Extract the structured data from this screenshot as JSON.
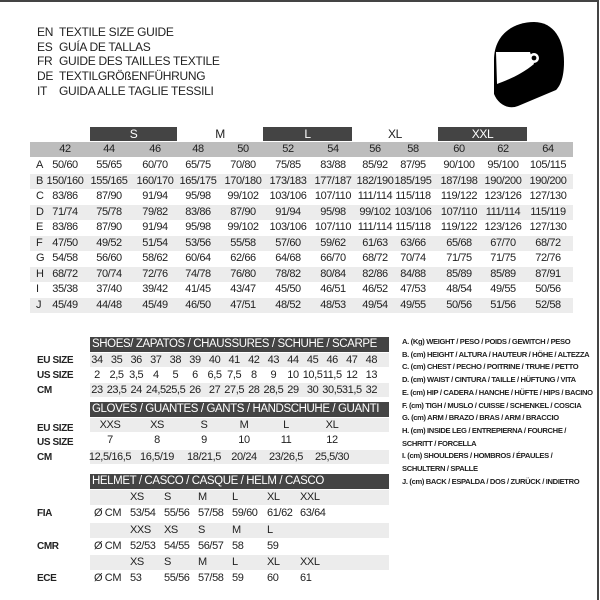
{
  "titles": [
    {
      "lang": "EN",
      "text": "TEXTILE SIZE GUIDE"
    },
    {
      "lang": "ES",
      "text": "GUÍA DE TALLAS"
    },
    {
      "lang": "FR",
      "text": "GUIDE DES TAILLES TEXTILE"
    },
    {
      "lang": "DE",
      "text": "TEXTILGRÖßENFÜHRUNG"
    },
    {
      "lang": "IT",
      "text": "GUIDA ALLE TAGLIE TESSILI"
    }
  ],
  "helmet_icon": "helmet-icon",
  "textile": {
    "size_groups": [
      "S",
      "M",
      "L",
      "XL",
      "XXL"
    ],
    "sizes": [
      "42",
      "44",
      "46",
      "48",
      "50",
      "52",
      "54",
      "56",
      "58",
      "60",
      "62",
      "64"
    ],
    "rows": [
      {
        "key": "A",
        "values": [
          "50/60",
          "55/65",
          "60/70",
          "65/75",
          "70/80",
          "75/85",
          "83/88",
          "85/92",
          "87/95",
          "90/100",
          "95/100",
          "105/115"
        ]
      },
      {
        "key": "B",
        "values": [
          "150/160",
          "155/165",
          "160/170",
          "165/175",
          "170/180",
          "173/183",
          "177/187",
          "182/190",
          "185/195",
          "187/198",
          "190/200",
          "190/200"
        ]
      },
      {
        "key": "C",
        "values": [
          "83/86",
          "87/90",
          "91/94",
          "95/98",
          "99/102",
          "103/106",
          "107/110",
          "111/114",
          "115/118",
          "119/122",
          "123/126",
          "127/130"
        ]
      },
      {
        "key": "D",
        "values": [
          "71/74",
          "75/78",
          "79/82",
          "83/86",
          "87/90",
          "91/94",
          "95/98",
          "99/102",
          "103/106",
          "107/110",
          "111/114",
          "115/119"
        ]
      },
      {
        "key": "E",
        "values": [
          "83/86",
          "87/90",
          "91/94",
          "95/98",
          "99/102",
          "103/106",
          "107/110",
          "111/114",
          "115/118",
          "119/122",
          "123/126",
          "127/130"
        ]
      },
      {
        "key": "F",
        "values": [
          "47/50",
          "49/52",
          "51/54",
          "53/56",
          "55/58",
          "57/60",
          "59/62",
          "61/63",
          "63/66",
          "65/68",
          "67/70",
          "68/72"
        ]
      },
      {
        "key": "G",
        "values": [
          "54/58",
          "56/60",
          "58/62",
          "60/64",
          "62/66",
          "64/68",
          "66/70",
          "68/72",
          "70/74",
          "71/75",
          "71/75",
          "72/76"
        ]
      },
      {
        "key": "H",
        "values": [
          "68/72",
          "70/74",
          "72/76",
          "74/78",
          "76/80",
          "78/82",
          "80/84",
          "82/86",
          "84/88",
          "85/89",
          "85/89",
          "87/91"
        ]
      },
      {
        "key": "I",
        "values": [
          "35/38",
          "37/40",
          "39/42",
          "41/45",
          "43/47",
          "45/50",
          "46/51",
          "46/52",
          "47/53",
          "48/54",
          "49/55",
          "50/56"
        ]
      },
      {
        "key": "J",
        "values": [
          "45/49",
          "44/48",
          "45/49",
          "46/50",
          "47/51",
          "48/52",
          "48/53",
          "49/54",
          "49/55",
          "50/56",
          "51/56",
          "52/58"
        ]
      }
    ]
  },
  "shoes": {
    "header": "SHOES/ ZAPATOS / CHAUSSURES / SCHUHE / SCARPE",
    "rows": [
      {
        "label": "EU SIZE",
        "values": [
          "34",
          "35",
          "36",
          "37",
          "38",
          "39",
          "40",
          "41",
          "42",
          "43",
          "44",
          "45",
          "46",
          "47",
          "48"
        ]
      },
      {
        "label": "US SIZE",
        "values": [
          "2",
          "2,5",
          "3,5",
          "4",
          "5",
          "6",
          "6,5",
          "7,5",
          "8",
          "9",
          "10",
          "10,5",
          "11,5",
          "12",
          "13"
        ]
      },
      {
        "label": "CM",
        "values": [
          "23",
          "23,5",
          "24",
          "24,5",
          "25,5",
          "26",
          "27",
          "27,5",
          "28",
          "28,5",
          "29",
          "30",
          "30,5",
          "31,5",
          "32"
        ]
      }
    ]
  },
  "gloves": {
    "header": "GLOVES / GUANTES / GANTS / HANDSCHUHE / GUANTI",
    "rows": [
      {
        "label": "EU SIZE",
        "values": [
          "XXS",
          "XS",
          "S",
          "M",
          "L",
          "XL"
        ]
      },
      {
        "label": "US SIZE",
        "values": [
          "7",
          "8",
          "9",
          "10",
          "11",
          "12"
        ]
      },
      {
        "label": "CM",
        "values": [
          "12,5/16,5",
          "16,5/19",
          "18/21,5",
          "20/24",
          "23/26,5",
          "25,5/30"
        ]
      }
    ]
  },
  "helmet": {
    "header": "HELMET / CASCO / CASQUE / HELM / CASCO",
    "unit": "Ø CM",
    "standards": [
      {
        "label": "FIA",
        "sizes": [
          "XS",
          "S",
          "M",
          "L",
          "XL",
          "XXL"
        ],
        "values": [
          "53/54",
          "55/56",
          "57/58",
          "59/60",
          "61/62",
          "63/64"
        ]
      },
      {
        "label": "CMR",
        "sizes": [
          "XXS",
          "XS",
          "S",
          "M",
          "L"
        ],
        "values": [
          "52/53",
          "54/55",
          "56/57",
          "58",
          "59"
        ]
      },
      {
        "label": "ECE",
        "sizes": [
          "XS",
          "S",
          "M",
          "L",
          "XL",
          "XXL"
        ],
        "values": [
          "53",
          "55/56",
          "57/58",
          "59",
          "60",
          "61"
        ]
      }
    ]
  },
  "legend": [
    "A. (Kg) WEIGHT / PESO / POIDS / GEWITCH / PESO",
    "B. (cm) HEIGHT / ALTURA / HAUTEUR / HÖHE / ALTEZZA",
    "C. (cm) CHEST / PECHO / POITRINE / TRUHE / PETTO",
    "D. (cm) WAIST / CINTURA / TAILLE / HÜFTUNG / VITA",
    "E. (cm) HIP / CADERA / HANCHE / HÜFTE / HIPS /  BACINO",
    "F. (cm) TIGH / MUSLO / CUISSE / SCHENKEL / COSCIA",
    "G. (cm) ARM  / BRAZO / BRAS / ARM / BRACCIO",
    "H. (cm) INSIDE LEG / ENTREPIERNA / FOURCHE /",
    "SCHRITT / FORCELLA",
    "I.  (cm) SHOULDERS / HOMBROS / ÉPAULES /",
    "SCHULTERN / SPALLE",
    "J. (cm) BACK / ESPALDA / DOS / ZURÜCK / INDIETRO"
  ],
  "colors": {
    "dark_bar": "#444444",
    "size_row": "#bdbdbd",
    "stripe": "#ececec"
  }
}
